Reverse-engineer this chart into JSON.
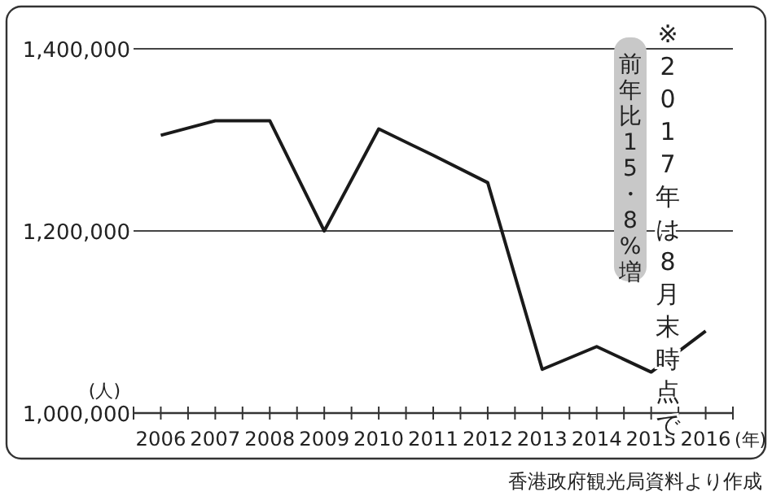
{
  "chart_data": {
    "type": "line",
    "x": [
      2006,
      2007,
      2008,
      2009,
      2010,
      2011,
      2012,
      2013,
      2014,
      2015,
      2016
    ],
    "series": [
      {
        "color": "#1a1a1a",
        "values": [
          1305000,
          1321000,
          1321000,
          1200000,
          1312000,
          1283000,
          1253000,
          1048000,
          1073000,
          1045000,
          1090000
        ]
      }
    ],
    "xlim": [
      2005.5,
      2016.5
    ],
    "xticks": [
      {
        "value": 2005.5,
        "label": null
      },
      2006,
      {
        "value": 2006.5,
        "label": null
      },
      2007,
      {
        "value": 2007.5,
        "label": null
      },
      2008,
      {
        "value": 2008.5,
        "label": null
      },
      2009,
      {
        "value": 2009.5,
        "label": null
      },
      2010,
      {
        "value": 2010.5,
        "label": null
      },
      2011,
      {
        "value": 2011.5,
        "label": null
      },
      2012,
      {
        "value": 2012.5,
        "label": null
      },
      2013,
      {
        "value": 2013.5,
        "label": null
      },
      2014,
      {
        "value": 2014.5,
        "label": null
      },
      2015,
      {
        "value": 2015.5,
        "label": null
      },
      2016,
      {
        "value": 2016.5,
        "label": null
      }
    ],
    "ylim": [
      1000000,
      1400000
    ],
    "yticks": [
      {
        "value": 1000000,
        "label": "1,000,000"
      },
      {
        "value": 1200000,
        "label": "1,200,000"
      },
      {
        "value": 1400000,
        "label": "1,400,000"
      }
    ],
    "xlabel": "(年)",
    "ylabel": "(人)",
    "grid": "y",
    "marker": "none",
    "line_style": "solid",
    "annotations": [
      "※2017年は8月末時点で",
      "前年比15・8%増",
      "香港政府観光局資料より作成"
    ]
  }
}
